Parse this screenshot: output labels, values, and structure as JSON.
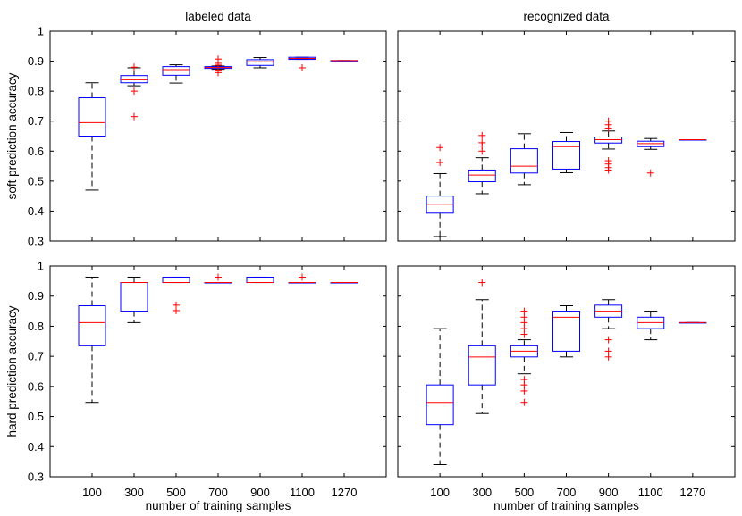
{
  "chart_data": [
    {
      "type": "box",
      "id": "tl",
      "title": "labeled data",
      "xlabel": "",
      "ylabel": "soft prediction accuracy",
      "ylim": [
        0.3,
        1.0
      ],
      "yticks": [
        "0.3",
        "0.4",
        "0.5",
        "0.6",
        "0.7",
        "0.8",
        "0.9",
        "1"
      ],
      "show_yticklabels": true,
      "show_xticklabels": false,
      "categories": [
        "100",
        "300",
        "500",
        "700",
        "900",
        "1100",
        "1270"
      ],
      "boxes": [
        {
          "lw": 0.47,
          "q1": 0.65,
          "med": 0.695,
          "q3": 0.778,
          "uw": 0.828,
          "outliers": []
        },
        {
          "lw": 0.818,
          "q1": 0.828,
          "med": 0.838,
          "q3": 0.852,
          "uw": 0.878,
          "outliers": [
            0.715,
            0.8,
            0.88
          ]
        },
        {
          "lw": 0.827,
          "q1": 0.853,
          "med": 0.872,
          "q3": 0.882,
          "uw": 0.888,
          "outliers": []
        },
        {
          "lw": 0.873,
          "q1": 0.876,
          "med": 0.879,
          "q3": 0.882,
          "uw": 0.884,
          "outliers": [
            0.862,
            0.87,
            0.887,
            0.893,
            0.907
          ]
        },
        {
          "lw": 0.878,
          "q1": 0.886,
          "med": 0.898,
          "q3": 0.905,
          "uw": 0.912,
          "outliers": []
        },
        {
          "lw": 0.906,
          "q1": 0.906,
          "med": 0.909,
          "q3": 0.913,
          "uw": 0.913,
          "outliers": [
            0.878
          ]
        },
        {
          "lw": 0.902,
          "q1": 0.902,
          "med": 0.902,
          "q3": 0.902,
          "uw": 0.902,
          "outliers": []
        }
      ]
    },
    {
      "type": "box",
      "id": "tr",
      "title": "recognized data",
      "xlabel": "",
      "ylabel": "",
      "ylim": [
        0.3,
        1.0
      ],
      "yticks": [
        "0.3",
        "0.4",
        "0.5",
        "0.6",
        "0.7",
        "0.8",
        "0.9",
        "1"
      ],
      "show_yticklabels": false,
      "show_xticklabels": false,
      "categories": [
        "100",
        "300",
        "500",
        "700",
        "900",
        "1100",
        "1270"
      ],
      "boxes": [
        {
          "lw": 0.315,
          "q1": 0.393,
          "med": 0.423,
          "q3": 0.45,
          "uw": 0.525,
          "outliers": [
            0.562,
            0.612
          ]
        },
        {
          "lw": 0.458,
          "q1": 0.498,
          "med": 0.52,
          "q3": 0.537,
          "uw": 0.578,
          "outliers": [
            0.6,
            0.617,
            0.628,
            0.652
          ]
        },
        {
          "lw": 0.488,
          "q1": 0.527,
          "med": 0.55,
          "q3": 0.608,
          "uw": 0.658,
          "outliers": []
        },
        {
          "lw": 0.528,
          "q1": 0.54,
          "med": 0.615,
          "q3": 0.632,
          "uw": 0.662,
          "outliers": []
        },
        {
          "lw": 0.607,
          "q1": 0.627,
          "med": 0.638,
          "q3": 0.647,
          "uw": 0.667,
          "outliers": [
            0.537,
            0.545,
            0.557,
            0.568,
            0.677,
            0.688,
            0.7
          ]
        },
        {
          "lw": 0.606,
          "q1": 0.615,
          "med": 0.625,
          "q3": 0.633,
          "uw": 0.642,
          "outliers": [
            0.527
          ]
        },
        {
          "lw": 0.638,
          "q1": 0.638,
          "med": 0.638,
          "q3": 0.638,
          "uw": 0.638,
          "outliers": []
        }
      ]
    },
    {
      "type": "box",
      "id": "bl",
      "title": "",
      "xlabel": "number of training samples",
      "ylabel": "hard prediction accuracy",
      "ylim": [
        0.3,
        1.0
      ],
      "yticks": [
        "0.3",
        "0.4",
        "0.5",
        "0.6",
        "0.7",
        "0.8",
        "0.9",
        "1"
      ],
      "show_yticklabels": true,
      "show_xticklabels": true,
      "categories": [
        "100",
        "300",
        "500",
        "700",
        "900",
        "1100",
        "1270"
      ],
      "boxes": [
        {
          "lw": 0.547,
          "q1": 0.735,
          "med": 0.812,
          "q3": 0.868,
          "uw": 0.963,
          "outliers": []
        },
        {
          "lw": 0.812,
          "q1": 0.85,
          "med": 0.945,
          "q3": 0.945,
          "uw": 0.963,
          "outliers": []
        },
        {
          "lw": 0.945,
          "q1": 0.945,
          "med": 0.945,
          "q3": 0.963,
          "uw": 0.963,
          "outliers": [
            0.852,
            0.87
          ]
        },
        {
          "lw": 0.945,
          "q1": 0.945,
          "med": 0.945,
          "q3": 0.945,
          "uw": 0.945,
          "outliers": [
            0.963
          ]
        },
        {
          "lw": 0.945,
          "q1": 0.945,
          "med": 0.945,
          "q3": 0.963,
          "uw": 0.963,
          "outliers": []
        },
        {
          "lw": 0.945,
          "q1": 0.945,
          "med": 0.945,
          "q3": 0.945,
          "uw": 0.945,
          "outliers": [
            0.963
          ]
        },
        {
          "lw": 0.945,
          "q1": 0.945,
          "med": 0.945,
          "q3": 0.945,
          "uw": 0.945,
          "outliers": []
        }
      ]
    },
    {
      "type": "box",
      "id": "br",
      "title": "",
      "xlabel": "number of training samples",
      "ylabel": "",
      "ylim": [
        0.3,
        1.0
      ],
      "yticks": [
        "0.3",
        "0.4",
        "0.5",
        "0.6",
        "0.7",
        "0.8",
        "0.9",
        "1"
      ],
      "show_yticklabels": false,
      "show_xticklabels": true,
      "categories": [
        "100",
        "300",
        "500",
        "700",
        "900",
        "1100",
        "1270"
      ],
      "boxes": [
        {
          "lw": 0.34,
          "q1": 0.473,
          "med": 0.547,
          "q3": 0.605,
          "uw": 0.792,
          "outliers": []
        },
        {
          "lw": 0.51,
          "q1": 0.605,
          "med": 0.698,
          "q3": 0.735,
          "uw": 0.888,
          "outliers": [
            0.945
          ]
        },
        {
          "lw": 0.642,
          "q1": 0.698,
          "med": 0.717,
          "q3": 0.735,
          "uw": 0.755,
          "outliers": [
            0.547,
            0.585,
            0.605,
            0.623,
            0.773,
            0.792,
            0.812,
            0.83,
            0.85
          ]
        },
        {
          "lw": 0.698,
          "q1": 0.717,
          "med": 0.83,
          "q3": 0.85,
          "uw": 0.868,
          "outliers": []
        },
        {
          "lw": 0.792,
          "q1": 0.83,
          "med": 0.85,
          "q3": 0.87,
          "uw": 0.888,
          "outliers": [
            0.698,
            0.717,
            0.755
          ]
        },
        {
          "lw": 0.755,
          "q1": 0.792,
          "med": 0.812,
          "q3": 0.83,
          "uw": 0.85,
          "outliers": []
        },
        {
          "lw": 0.812,
          "q1": 0.812,
          "med": 0.812,
          "q3": 0.812,
          "uw": 0.812,
          "outliers": []
        }
      ]
    }
  ],
  "colors": {
    "box": "#0000ff",
    "median": "#ff0000",
    "whisker": "#000000",
    "outlier": "#ff0000",
    "axes": "#000000"
  }
}
